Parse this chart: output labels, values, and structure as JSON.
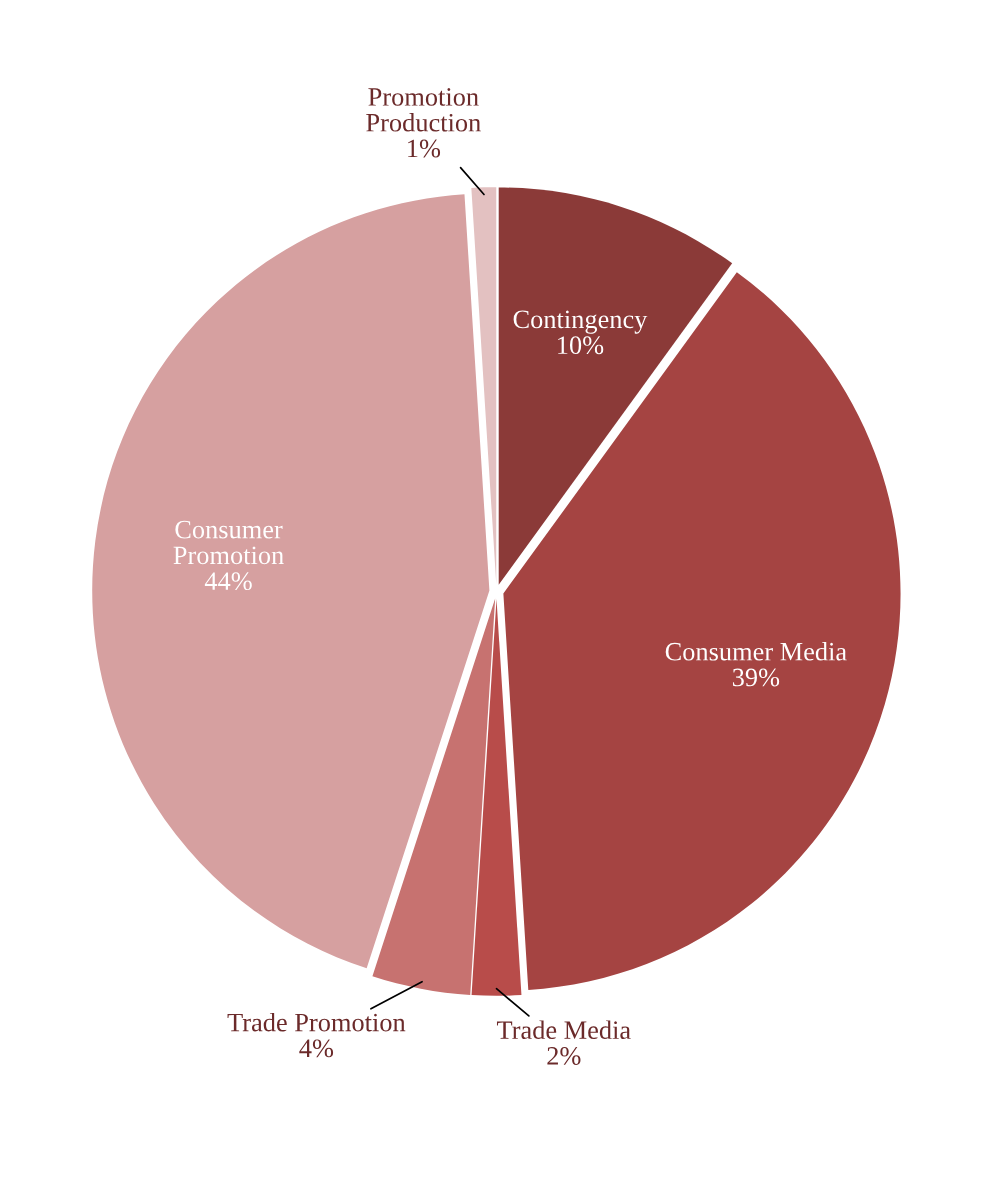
{
  "chart_data": {
    "type": "pie",
    "categories": [
      "Contingency",
      "Consumer Media",
      "Trade Media",
      "Trade Promotion",
      "Consumer\nPromotion",
      "Promotion\nProduction"
    ],
    "values": [
      10,
      39,
      2,
      4,
      44,
      1
    ],
    "colors": [
      "#8b3a38",
      "#a54442",
      "#b84c4a",
      "#c77270",
      "#d6a0a0",
      "#e3c1c1"
    ],
    "value_labels": [
      "10%",
      "39%",
      "2%",
      "4%",
      "44%",
      "1%"
    ],
    "legend": false
  }
}
